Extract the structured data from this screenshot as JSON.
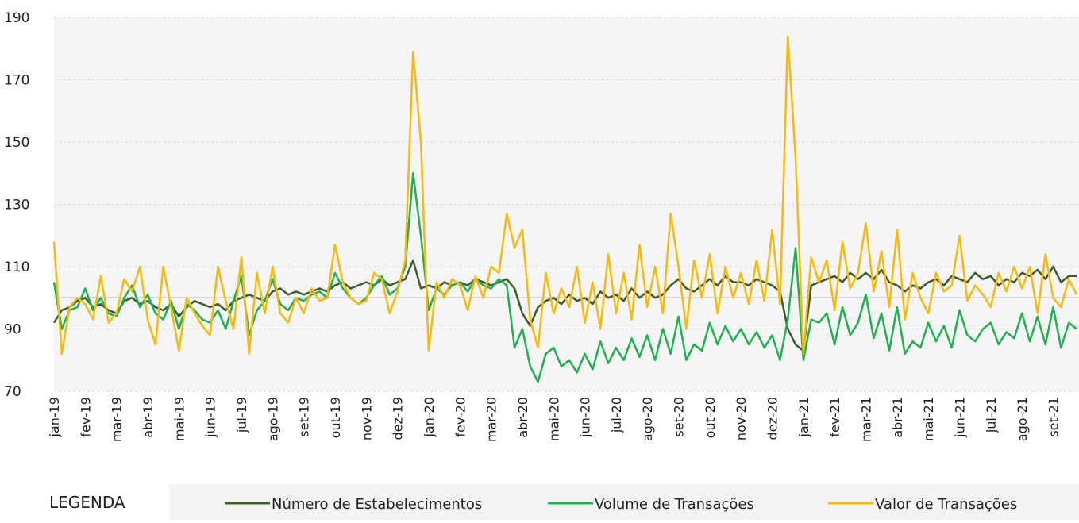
{
  "chart_data": {
    "type": "line",
    "categories": [
      "jan-19",
      null,
      null,
      null,
      "fev-19",
      null,
      null,
      null,
      "mar-19",
      null,
      null,
      null,
      "abr-19",
      null,
      null,
      null,
      "mai-19",
      null,
      null,
      null,
      "jun-19",
      null,
      null,
      null,
      "jul-19",
      null,
      null,
      null,
      "ago-19",
      null,
      null,
      null,
      "set-19",
      null,
      null,
      null,
      "out-19",
      null,
      null,
      null,
      "nov-19",
      null,
      null,
      null,
      "dez-19",
      null,
      null,
      null,
      "jan-20",
      null,
      null,
      null,
      "fev-20",
      null,
      null,
      null,
      "mar-20",
      null,
      null,
      null,
      "abr-20",
      null,
      null,
      null,
      "mai-20",
      null,
      null,
      null,
      "jun-20",
      null,
      null,
      null,
      "jul-20",
      null,
      null,
      null,
      "ago-20",
      null,
      null,
      null,
      "set-20",
      null,
      null,
      null,
      "out-20",
      null,
      null,
      null,
      "nov-20",
      null,
      null,
      null,
      "dez-20",
      null,
      null,
      null,
      "jan-21",
      null,
      null,
      null,
      "fev-21",
      null,
      null,
      null,
      "mar-21",
      null,
      null,
      null,
      "abr-21",
      null,
      null,
      null,
      "mai-21",
      null,
      null,
      null,
      "jun-21",
      null,
      null,
      null,
      "jul-21",
      null,
      null,
      null,
      "ago-21",
      null,
      null,
      null,
      "set-21",
      null,
      null,
      null
    ],
    "series": [
      {
        "name": "Número de Estabelecimentos",
        "color": "#3d5a2a",
        "values": [
          92,
          96,
          97,
          99,
          100,
          97,
          98,
          96,
          95,
          99,
          100,
          98,
          99,
          97,
          96,
          98,
          94,
          97,
          99,
          98,
          97,
          98,
          96,
          99,
          100,
          101,
          100,
          99,
          102,
          103,
          101,
          102,
          101,
          102,
          103,
          102,
          104,
          105,
          103,
          104,
          105,
          104,
          106,
          104,
          105,
          106,
          112,
          103,
          104,
          103,
          105,
          104,
          105,
          104,
          106,
          105,
          104,
          105,
          106,
          103,
          95,
          91,
          97,
          99,
          100,
          98,
          101,
          99,
          100,
          98,
          102,
          100,
          101,
          99,
          103,
          100,
          102,
          100,
          101,
          104,
          106,
          103,
          102,
          104,
          106,
          104,
          107,
          105,
          105,
          104,
          106,
          105,
          104,
          102,
          90,
          85,
          83,
          104,
          105,
          106,
          107,
          105,
          108,
          106,
          108,
          106,
          109,
          105,
          104,
          102,
          104,
          103,
          105,
          106,
          104,
          107,
          106,
          105,
          108,
          106,
          107,
          104,
          106,
          105,
          108,
          107,
          109,
          106,
          110,
          105,
          107,
          107
        ]
      },
      {
        "name": "Volume de Transações",
        "color": "#1fb04f",
        "values": [
          105,
          90,
          96,
          97,
          103,
          96,
          100,
          95,
          94,
          100,
          104,
          97,
          101,
          95,
          93,
          99,
          90,
          98,
          96,
          93,
          92,
          96,
          90,
          99,
          107,
          88,
          96,
          99,
          106,
          98,
          96,
          100,
          99,
          101,
          102,
          100,
          108,
          103,
          100,
          98,
          100,
          104,
          107,
          101,
          103,
          110,
          140,
          120,
          96,
          103,
          101,
          104,
          105,
          102,
          106,
          104,
          103,
          106,
          104,
          84,
          90,
          78,
          73,
          82,
          84,
          78,
          80,
          76,
          82,
          77,
          86,
          79,
          84,
          80,
          87,
          81,
          88,
          80,
          90,
          82,
          94,
          80,
          85,
          83,
          92,
          85,
          91,
          86,
          90,
          85,
          89,
          84,
          88,
          80,
          93,
          116,
          80,
          93,
          92,
          95,
          85,
          97,
          88,
          92,
          101,
          87,
          95,
          83,
          97,
          82,
          86,
          84,
          92,
          86,
          91,
          84,
          96,
          88,
          86,
          90,
          92,
          85,
          89,
          87,
          95,
          86,
          94,
          85,
          97,
          84,
          92,
          90
        ]
      },
      {
        "name": "Valor de Transações",
        "color": "#f6b90c",
        "values": [
          118,
          82,
          97,
          100,
          98,
          93,
          107,
          92,
          95,
          106,
          102,
          110,
          93,
          85,
          110,
          97,
          83,
          100,
          95,
          91,
          88,
          110,
          99,
          90,
          113,
          82,
          108,
          95,
          110,
          95,
          92,
          100,
          95,
          103,
          99,
          100,
          117,
          105,
          100,
          98,
          99,
          108,
          106,
          95,
          102,
          112,
          179,
          150,
          83,
          105,
          100,
          106,
          104,
          96,
          107,
          100,
          110,
          108,
          127,
          116,
          122,
          93,
          84,
          108,
          95,
          103,
          97,
          110,
          92,
          105,
          90,
          114,
          95,
          108,
          93,
          117,
          97,
          110,
          95,
          127,
          110,
          90,
          112,
          100,
          114,
          95,
          110,
          100,
          108,
          98,
          112,
          99,
          122,
          98,
          184,
          145,
          82,
          113,
          105,
          112,
          96,
          118,
          103,
          108,
          124,
          102,
          115,
          97,
          122,
          93,
          108,
          100,
          95,
          108,
          102,
          104,
          120,
          99,
          104,
          101,
          97,
          108,
          102,
          110,
          103,
          110,
          95,
          114,
          100,
          97,
          106,
          101
        ]
      }
    ],
    "ylim": [
      70,
      190
    ],
    "yticks": [
      70,
      90,
      110,
      130,
      150,
      170,
      190
    ],
    "grid": true,
    "reference_line": 100,
    "legend_title": "LEGENDA",
    "legend": "bottom"
  }
}
